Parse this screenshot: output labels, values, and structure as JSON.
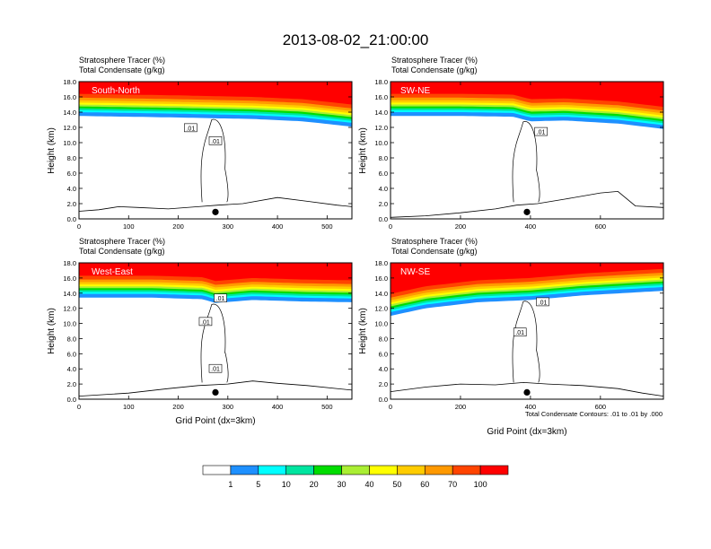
{
  "title": "2013-08-02_21:00:00",
  "colors": {
    "bands": [
      "#ffffff",
      "#1e90ff",
      "#00ffff",
      "#00e5a0",
      "#00dd00",
      "#aaee33",
      "#ffff00",
      "#ffcc00",
      "#ff9900",
      "#ff4400",
      "#ff0000"
    ],
    "contour": "#000000",
    "frame": "#000000",
    "text": "#000000"
  },
  "colorbar": {
    "labels": [
      "1",
      "5",
      "10",
      "20",
      "30",
      "40",
      "50",
      "60",
      "70",
      "100"
    ]
  },
  "footnote": "Total Condensate Contours: .01 to .01 by .000",
  "chart_data": [
    {
      "type": "heatmap",
      "label": "South-North",
      "title_line1": "Stratosphere Tracer   (%)",
      "title_line2": "Total Condensate   (g/kg)",
      "ylabel": "Height (km)",
      "xlabel": "",
      "ylim": [
        0,
        18
      ],
      "yticks": [
        "0.0",
        "2.0",
        "4.0",
        "6.0",
        "8.0",
        "10.0",
        "12.0",
        "14.0",
        "16.0",
        "18.0"
      ],
      "xlim": [
        0,
        550
      ],
      "xticks": [
        0,
        100,
        200,
        300,
        400,
        500
      ],
      "tropopause_km": [
        [
          0,
          14.0
        ],
        [
          100,
          13.9
        ],
        [
          200,
          13.8
        ],
        [
          270,
          13.7
        ],
        [
          350,
          13.6
        ],
        [
          450,
          13.3
        ],
        [
          550,
          12.6
        ]
      ],
      "point_x": 275,
      "contour_labels": [
        {
          "text": ".01",
          "x": 225,
          "y": 11.9
        },
        {
          "text": ".01",
          "x": 275,
          "y": 10.2
        }
      ],
      "terrain": [
        [
          0,
          1.0
        ],
        [
          40,
          1.2
        ],
        [
          80,
          1.6
        ],
        [
          120,
          1.5
        ],
        [
          180,
          1.3
        ],
        [
          240,
          1.6
        ],
        [
          280,
          1.8
        ],
        [
          330,
          2.0
        ],
        [
          400,
          2.8
        ],
        [
          460,
          2.3
        ],
        [
          520,
          1.8
        ],
        [
          550,
          1.6
        ]
      ]
    },
    {
      "type": "heatmap",
      "label": "SW-NE",
      "title_line1": "Stratosphere Tracer   (%)",
      "title_line2": "Total Condensate   (g/kg)",
      "ylabel": "Height (km)",
      "xlabel": "",
      "ylim": [
        0,
        18
      ],
      "yticks": [
        "0.0",
        "2.0",
        "4.0",
        "6.0",
        "8.0",
        "10.0",
        "12.0",
        "14.0",
        "16.0",
        "18.0"
      ],
      "xlim": [
        0,
        780
      ],
      "xticks": [
        0,
        200,
        400,
        600
      ],
      "tropopause_km": [
        [
          0,
          14.0
        ],
        [
          200,
          14.0
        ],
        [
          350,
          13.9
        ],
        [
          400,
          13.3
        ],
        [
          500,
          13.4
        ],
        [
          650,
          13.0
        ],
        [
          780,
          12.3
        ]
      ],
      "point_x": 390,
      "contour_labels": [
        {
          "text": ".01",
          "x": 430,
          "y": 11.4
        }
      ],
      "terrain": [
        [
          0,
          0.2
        ],
        [
          100,
          0.4
        ],
        [
          200,
          0.8
        ],
        [
          300,
          1.3
        ],
        [
          360,
          1.8
        ],
        [
          420,
          2.0
        ],
        [
          500,
          2.6
        ],
        [
          600,
          3.4
        ],
        [
          650,
          3.6
        ],
        [
          700,
          1.7
        ],
        [
          780,
          1.5
        ]
      ]
    },
    {
      "type": "heatmap",
      "label": "West-East",
      "title_line1": "Stratosphere Tracer   (%)",
      "title_line2": "Total Condensate   (g/kg)",
      "ylabel": "Height (km)",
      "xlabel": "Grid Point (dx=3km)",
      "ylim": [
        0,
        18
      ],
      "yticks": [
        "0.0",
        "2.0",
        "4.0",
        "6.0",
        "8.0",
        "10.0",
        "12.0",
        "14.0",
        "16.0",
        "18.0"
      ],
      "xlim": [
        0,
        550
      ],
      "xticks": [
        0,
        100,
        200,
        300,
        400,
        500
      ],
      "tropopause_km": [
        [
          0,
          13.9
        ],
        [
          150,
          13.9
        ],
        [
          250,
          13.7
        ],
        [
          275,
          13.2
        ],
        [
          350,
          13.6
        ],
        [
          450,
          13.4
        ],
        [
          550,
          13.3
        ]
      ],
      "point_x": 275,
      "contour_labels": [
        {
          "text": ".01",
          "x": 255,
          "y": 10.2
        },
        {
          "text": ".01",
          "x": 285,
          "y": 13.3
        },
        {
          "text": ".01",
          "x": 275,
          "y": 4.0
        }
      ],
      "terrain": [
        [
          0,
          0.4
        ],
        [
          100,
          0.8
        ],
        [
          180,
          1.4
        ],
        [
          240,
          1.8
        ],
        [
          300,
          2.0
        ],
        [
          350,
          2.4
        ],
        [
          400,
          2.1
        ],
        [
          460,
          1.8
        ],
        [
          550,
          1.2
        ]
      ]
    },
    {
      "type": "heatmap",
      "label": "NW-SE",
      "title_line1": "Stratosphere Tracer   (%)",
      "title_line2": "Total Condensate   (g/kg)",
      "ylabel": "Height (km)",
      "xlabel": "Grid Point (dx=3km)",
      "ylim": [
        0,
        18
      ],
      "yticks": [
        "0.0",
        "2.0",
        "4.0",
        "6.0",
        "8.0",
        "10.0",
        "12.0",
        "14.0",
        "16.0",
        "18.0"
      ],
      "xlim": [
        0,
        780
      ],
      "xticks": [
        0,
        200,
        400,
        600
      ],
      "tropopause_km": [
        [
          0,
          11.5
        ],
        [
          100,
          12.5
        ],
        [
          250,
          13.3
        ],
        [
          400,
          13.6
        ],
        [
          550,
          14.2
        ],
        [
          700,
          14.6
        ],
        [
          780,
          14.8
        ]
      ],
      "point_x": 390,
      "contour_labels": [
        {
          "text": ".01",
          "x": 370,
          "y": 8.8
        },
        {
          "text": ".01",
          "x": 435,
          "y": 12.8
        }
      ],
      "terrain": [
        [
          0,
          1.0
        ],
        [
          100,
          1.6
        ],
        [
          200,
          2.0
        ],
        [
          300,
          1.9
        ],
        [
          380,
          2.2
        ],
        [
          450,
          2.0
        ],
        [
          550,
          1.8
        ],
        [
          650,
          1.4
        ],
        [
          720,
          0.8
        ],
        [
          780,
          0.4
        ]
      ]
    }
  ]
}
